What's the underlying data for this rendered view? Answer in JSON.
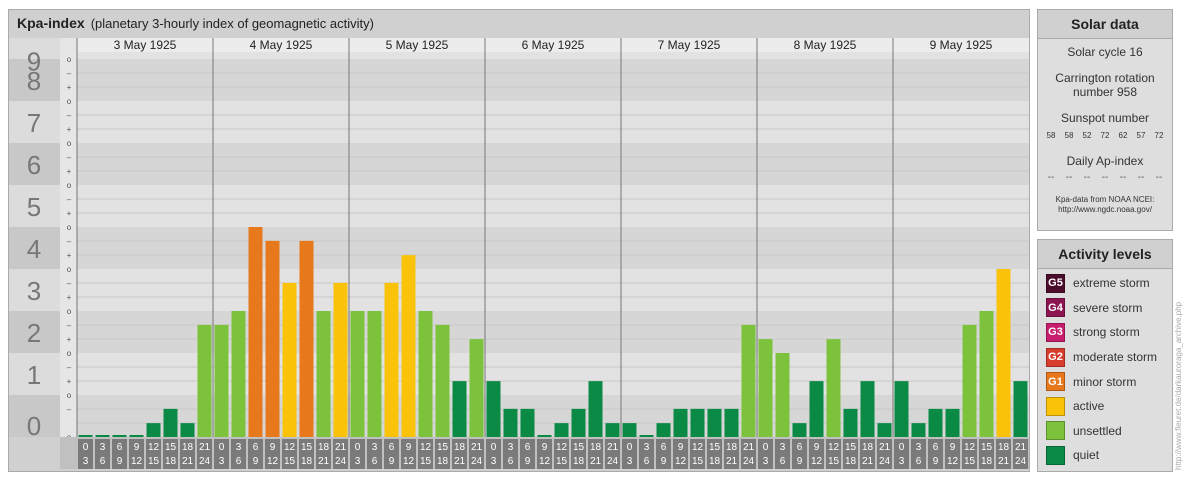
{
  "header": {
    "title": "Kpa-index",
    "subtitle": "(planetary 3-hourly index of geomagnetic activity)"
  },
  "chart_data": {
    "type": "bar",
    "ylim": [
      0,
      9
    ],
    "y_ticks": [
      "0",
      "1",
      "2",
      "3",
      "4",
      "5",
      "6",
      "7",
      "8",
      "9"
    ],
    "minor_tick_labels": [
      "o",
      "+",
      "–"
    ],
    "days": [
      "3 May 1925",
      "4 May 1925",
      "5 May 1925",
      "6 May 1925",
      "7 May 1925",
      "8 May 1925",
      "9 May 1925"
    ],
    "interval_start_labels": [
      "0",
      "3",
      "6",
      "9",
      "12",
      "15",
      "18",
      "21"
    ],
    "interval_end_labels": [
      "3",
      "6",
      "9",
      "12",
      "15",
      "18",
      "21",
      "24"
    ],
    "values": [
      0.0,
      0.0,
      0.0,
      0.0,
      0.33,
      0.67,
      0.33,
      2.67,
      2.67,
      3.0,
      5.0,
      4.67,
      3.67,
      4.67,
      3.0,
      3.67,
      3.0,
      3.0,
      3.67,
      4.33,
      3.0,
      2.67,
      1.33,
      2.33,
      1.33,
      0.67,
      0.67,
      0.0,
      0.33,
      0.67,
      1.33,
      0.33,
      0.33,
      0.0,
      0.33,
      0.67,
      0.67,
      0.67,
      0.67,
      2.67,
      2.33,
      2.0,
      0.33,
      1.33,
      2.33,
      0.67,
      1.33,
      0.33,
      1.33,
      0.33,
      0.67,
      0.67,
      2.67,
      3.0,
      4.0,
      1.33
    ],
    "colors": {
      "quiet": "#0a8a45",
      "unsettled": "#7cc23c",
      "active": "#fbc20a",
      "minor_storm": "#e8781c",
      "moderate_storm": "#d83c2c",
      "strong_storm": "#c81c6c",
      "severe_storm": "#8c1450",
      "extreme_storm": "#4c0c2c"
    }
  },
  "solar": {
    "title": "Solar data",
    "cycle": "Solar cycle 16",
    "carrington_line1": "Carrington rotation",
    "carrington_line2": "number 958",
    "sunspot_label": "Sunspot number",
    "sunspot_values": [
      "58",
      "58",
      "52",
      "72",
      "62",
      "57",
      "72"
    ],
    "ap_label": "Daily Ap-index",
    "ap_values": [
      "--",
      "--",
      "--",
      "--",
      "--",
      "--",
      "--"
    ],
    "credit_line1": "Kpa-data from NOAA NCEI:",
    "credit_line2": "http://www.ngdc.noaa.gov/"
  },
  "activity": {
    "title": "Activity levels",
    "items": [
      {
        "badge": "G5",
        "label": "extreme storm",
        "color": "#4c0c2c"
      },
      {
        "badge": "G4",
        "label": "severe storm",
        "color": "#8c1450"
      },
      {
        "badge": "G3",
        "label": "strong storm",
        "color": "#c81c6c"
      },
      {
        "badge": "G2",
        "label": "moderate storm",
        "color": "#d83c2c"
      },
      {
        "badge": "G1",
        "label": "minor storm",
        "color": "#e8781c"
      },
      {
        "badge": "",
        "label": "active",
        "color": "#fbc20a"
      },
      {
        "badge": "",
        "label": "unsettled",
        "color": "#7cc23c"
      },
      {
        "badge": "",
        "label": "quiet",
        "color": "#0a8a45"
      }
    ]
  },
  "credit_vertical": "http://www.fleuret.de/darkauroraga_archive.php"
}
